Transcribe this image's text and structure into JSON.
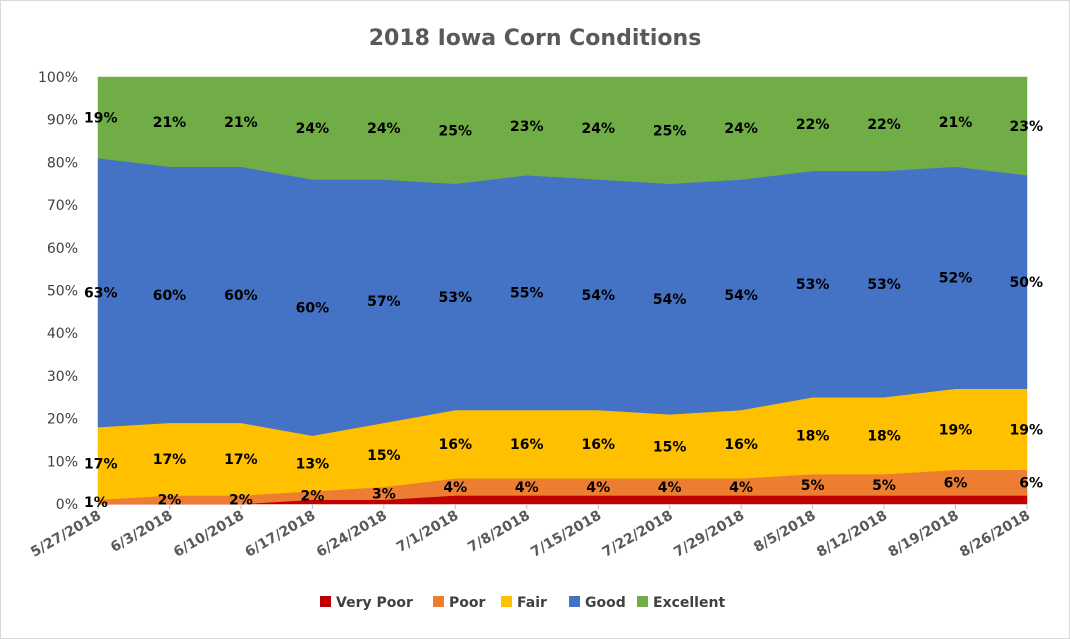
{
  "chart_data": {
    "type": "area",
    "stacked": true,
    "title": "2018 Iowa Corn Conditions",
    "categories": [
      "5/27/2018",
      "6/3/2018",
      "6/10/2018",
      "6/17/2018",
      "6/24/2018",
      "7/1/2018",
      "7/8/2018",
      "7/15/2018",
      "7/22/2018",
      "7/29/2018",
      "8/5/2018",
      "8/12/2018",
      "8/19/2018",
      "8/26/2018"
    ],
    "ylim": [
      0,
      100
    ],
    "y_ticks": [
      "0%",
      "10%",
      "20%",
      "30%",
      "40%",
      "50%",
      "60%",
      "70%",
      "80%",
      "90%",
      "100%"
    ],
    "legend_position": "bottom",
    "series": [
      {
        "name": "Very Poor",
        "color": "#c00000",
        "values": [
          0,
          0,
          0,
          1,
          1,
          2,
          2,
          2,
          2,
          2,
          2,
          2,
          2,
          2
        ]
      },
      {
        "name": "Poor",
        "color": "#ed7d31",
        "values": [
          1,
          2,
          2,
          2,
          3,
          4,
          4,
          4,
          4,
          4,
          5,
          5,
          6,
          6
        ]
      },
      {
        "name": "Fair",
        "color": "#ffc000",
        "values": [
          17,
          17,
          17,
          13,
          15,
          16,
          16,
          16,
          15,
          16,
          18,
          18,
          19,
          19
        ]
      },
      {
        "name": "Good",
        "color": "#4472c4",
        "values": [
          63,
          60,
          60,
          60,
          57,
          53,
          55,
          54,
          54,
          54,
          53,
          53,
          52,
          50
        ]
      },
      {
        "name": "Excellent",
        "color": "#70ad47",
        "values": [
          19,
          21,
          21,
          24,
          24,
          25,
          23,
          24,
          25,
          24,
          22,
          22,
          21,
          23
        ]
      }
    ],
    "data_labels": {
      "Poor": [
        "1%",
        "2%",
        "2%",
        "2%",
        "3%",
        "4%",
        "4%",
        "4%",
        "4%",
        "4%",
        "5%",
        "5%",
        "6%",
        "6%"
      ],
      "Fair": [
        "17%",
        "17%",
        "17%",
        "13%",
        "15%",
        "16%",
        "16%",
        "16%",
        "15%",
        "16%",
        "18%",
        "18%",
        "19%",
        "19%"
      ],
      "Good": [
        "63%",
        "60%",
        "60%",
        "60%",
        "57%",
        "53%",
        "55%",
        "54%",
        "54%",
        "54%",
        "53%",
        "53%",
        "52%",
        "50%"
      ],
      "Excellent": [
        "19%",
        "21%",
        "21%",
        "24%",
        "24%",
        "25%",
        "23%",
        "24%",
        "25%",
        "24%",
        "22%",
        "22%",
        "21%",
        "23%"
      ]
    }
  }
}
